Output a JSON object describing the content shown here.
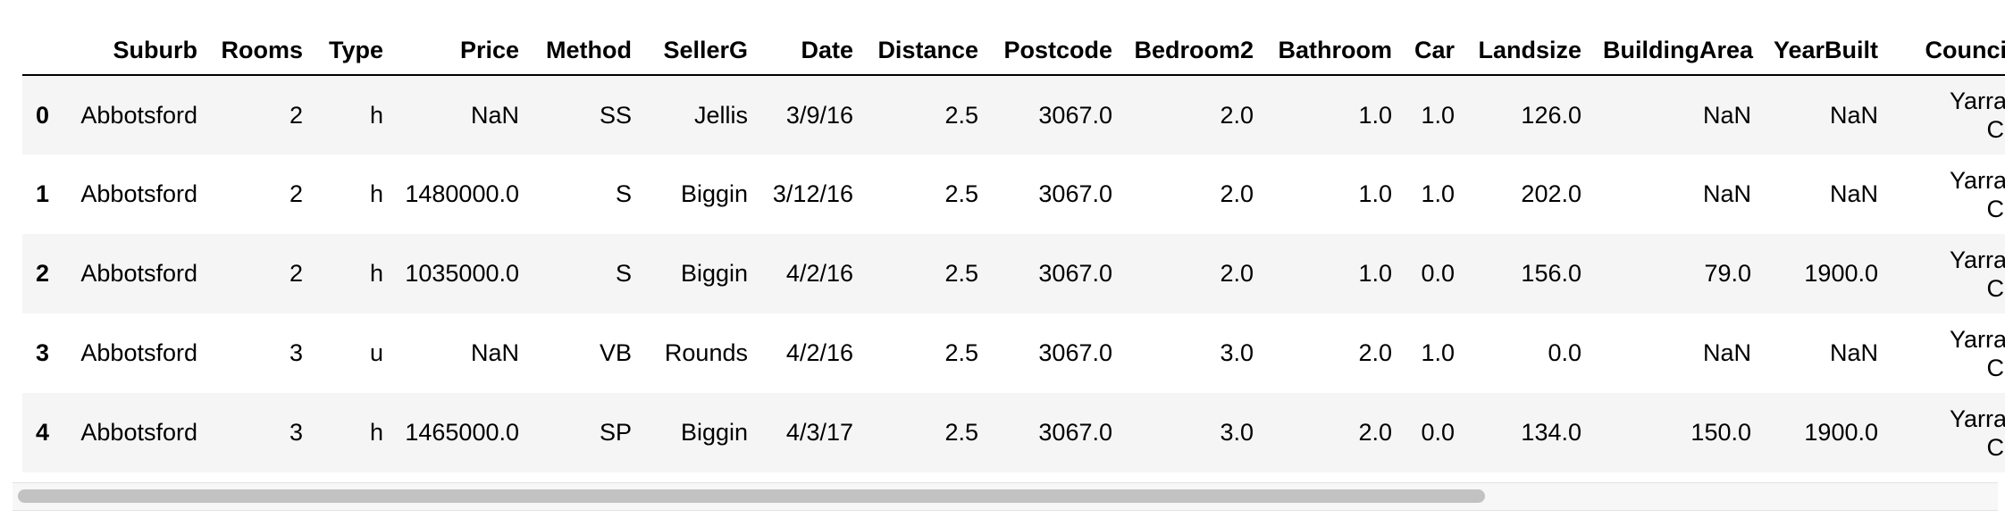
{
  "table": {
    "columns": [
      "",
      "Suburb",
      "Rooms",
      "Type",
      "Price",
      "Method",
      "SellerG",
      "Date",
      "Distance",
      "Postcode",
      "Bedroom2",
      "Bathroom",
      "Car",
      "Landsize",
      "BuildingArea",
      "YearBuilt",
      "CouncilA"
    ],
    "rows": [
      {
        "index": "0",
        "suburb": "Abbotsford",
        "rooms": "2",
        "type": "h",
        "price": "NaN",
        "method": "SS",
        "sellerg": "Jellis",
        "date": "3/9/16",
        "distance": "2.5",
        "postcode": "3067.0",
        "bedroom2": "2.0",
        "bathroom": "1.0",
        "car": "1.0",
        "landsize": "126.0",
        "buildingarea": "NaN",
        "yearbuilt": "NaN",
        "council_line1": "Yarra C",
        "council_line2": "Cou"
      },
      {
        "index": "1",
        "suburb": "Abbotsford",
        "rooms": "2",
        "type": "h",
        "price": "1480000.0",
        "method": "S",
        "sellerg": "Biggin",
        "date": "3/12/16",
        "distance": "2.5",
        "postcode": "3067.0",
        "bedroom2": "2.0",
        "bathroom": "1.0",
        "car": "1.0",
        "landsize": "202.0",
        "buildingarea": "NaN",
        "yearbuilt": "NaN",
        "council_line1": "Yarra C",
        "council_line2": "Cou"
      },
      {
        "index": "2",
        "suburb": "Abbotsford",
        "rooms": "2",
        "type": "h",
        "price": "1035000.0",
        "method": "S",
        "sellerg": "Biggin",
        "date": "4/2/16",
        "distance": "2.5",
        "postcode": "3067.0",
        "bedroom2": "2.0",
        "bathroom": "1.0",
        "car": "0.0",
        "landsize": "156.0",
        "buildingarea": "79.0",
        "yearbuilt": "1900.0",
        "council_line1": "Yarra C",
        "council_line2": "Cou"
      },
      {
        "index": "3",
        "suburb": "Abbotsford",
        "rooms": "3",
        "type": "u",
        "price": "NaN",
        "method": "VB",
        "sellerg": "Rounds",
        "date": "4/2/16",
        "distance": "2.5",
        "postcode": "3067.0",
        "bedroom2": "3.0",
        "bathroom": "2.0",
        "car": "1.0",
        "landsize": "0.0",
        "buildingarea": "NaN",
        "yearbuilt": "NaN",
        "council_line1": "Yarra C",
        "council_line2": "Cou"
      },
      {
        "index": "4",
        "suburb": "Abbotsford",
        "rooms": "3",
        "type": "h",
        "price": "1465000.0",
        "method": "SP",
        "sellerg": "Biggin",
        "date": "4/3/17",
        "distance": "2.5",
        "postcode": "3067.0",
        "bedroom2": "3.0",
        "bathroom": "2.0",
        "car": "0.0",
        "landsize": "134.0",
        "buildingarea": "150.0",
        "yearbuilt": "1900.0",
        "council_line1": "Yarra C",
        "council_line2": "Cou"
      }
    ]
  },
  "colors": {
    "stripe": "#f5f5f5",
    "header_rule": "#000000",
    "scroll_thumb": "#c2c2c2",
    "scroll_track": "#f7f7f7"
  }
}
